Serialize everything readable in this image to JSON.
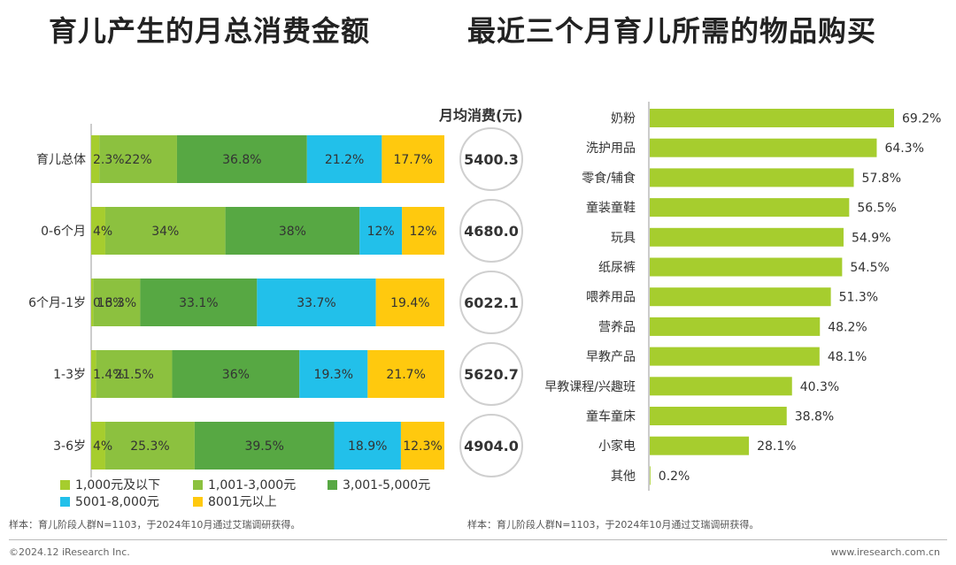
{
  "titles": {
    "left": "育儿产生的月总消费金额",
    "right": "最近三个月育儿所需的物品购买"
  },
  "avg_header": "月均消费(元)",
  "notes": {
    "left": "样本：育儿阶段人群N=1103，于2024年10月通过艾瑞调研获得。",
    "right": "样本：育儿阶段人群N=1103，于2024年10月通过艾瑞调研获得。"
  },
  "footer": {
    "copyright": "©2024.12 iResearch Inc.",
    "website": "www.iresearch.com.cn"
  },
  "colors": {
    "seg1": "#a6cd2e",
    "seg2": "#8cc13f",
    "seg3": "#57a843",
    "seg4": "#22c0ea",
    "seg5": "#ffc90e",
    "right_bar": "#a6cd2e"
  },
  "chart_data": [
    {
      "type": "bar",
      "orientation": "horizontal",
      "stacked": "percent",
      "title": "育儿产生的月总消费金额",
      "categories": [
        "育儿总体",
        "0-6个月",
        "6个月-1岁",
        "1-3岁",
        "3-6岁"
      ],
      "series": [
        {
          "name": "1,000元及以下",
          "values": [
            2.3,
            4,
            0.6,
            1.4,
            4
          ],
          "labels": [
            "2.3%",
            "4%",
            "0.6%",
            "1.4%",
            "4%"
          ]
        },
        {
          "name": "1,001-3,000元",
          "values": [
            22,
            34,
            13.3,
            21.5,
            25.3
          ],
          "labels": [
            "22%",
            "34%",
            "13.3%",
            "21.5%",
            "25.3%"
          ]
        },
        {
          "name": "3,001-5,000元",
          "values": [
            36.8,
            38,
            33.1,
            36,
            39.5
          ],
          "labels": [
            "36.8%",
            "38%",
            "33.1%",
            "36%",
            "39.5%"
          ]
        },
        {
          "name": "5001-8,000元",
          "values": [
            21.2,
            12,
            33.7,
            19.3,
            18.9
          ],
          "labels": [
            "21.2%",
            "12%",
            "33.7%",
            "19.3%",
            "18.9%"
          ]
        },
        {
          "name": "8001元以上",
          "values": [
            17.7,
            12,
            19.4,
            21.7,
            12.3
          ],
          "labels": [
            "17.7%",
            "12%",
            "19.4%",
            "21.7%",
            "12.3%"
          ]
        }
      ],
      "monthly_avg": [
        "5400.3",
        "4680.0",
        "6022.1",
        "5620.7",
        "4904.0"
      ],
      "legend": "bottom"
    },
    {
      "type": "bar",
      "orientation": "horizontal",
      "title": "最近三个月育儿所需的物品购买",
      "categories": [
        "奶粉",
        "洗护用品",
        "零食/辅食",
        "童装童鞋",
        "玩具",
        "纸尿裤",
        "喂养用品",
        "营养品",
        "早教产品",
        "早教课程/兴趣班",
        "童车童床",
        "小家电",
        "其他"
      ],
      "values": [
        69.2,
        64.3,
        57.8,
        56.5,
        54.9,
        54.5,
        51.3,
        48.2,
        48.1,
        40.3,
        38.8,
        28.1,
        0.2
      ],
      "labels": [
        "69.2%",
        "64.3%",
        "57.8%",
        "56.5%",
        "54.9%",
        "54.5%",
        "51.3%",
        "48.2%",
        "48.1%",
        "40.3%",
        "38.8%",
        "28.1%",
        "0.2%"
      ]
    }
  ]
}
